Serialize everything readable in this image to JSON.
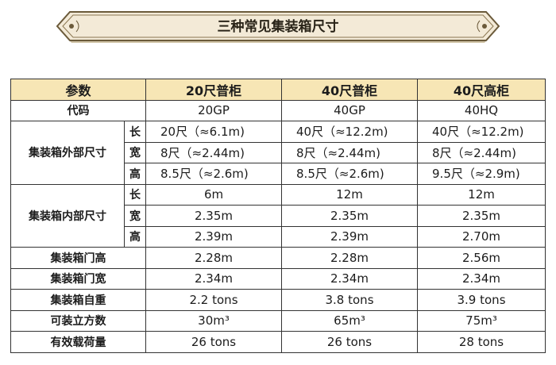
{
  "title": "三种常见集装箱尺寸",
  "table": {
    "header": {
      "param": "参数",
      "c1": "20尺普柜",
      "c2": "40尺普柜",
      "c3": "40尺高柜"
    },
    "code": {
      "label": "代码",
      "c1": "20GP",
      "c2": "40GP",
      "c3": "40HQ"
    },
    "outer": {
      "label": "集装箱外部尺寸",
      "rows": [
        {
          "sub": "长",
          "c1": "20尺（≈6.1m)",
          "c2": "40尺（≈12.2m)",
          "c3": "40尺（≈12.2m)"
        },
        {
          "sub": "宽",
          "c1": "8尺（≈2.44m)",
          "c2": "8尺（≈2.44m)",
          "c3": "8尺（≈2.44m)"
        },
        {
          "sub": "高",
          "c1": "8.5尺（≈2.6m)",
          "c2": "8.5尺（≈2.6m)",
          "c3": "9.5尺（≈2.9m)"
        }
      ]
    },
    "inner": {
      "label": "集装箱内部尺寸",
      "rows": [
        {
          "sub": "长",
          "c1": "6m",
          "c2": "12m",
          "c3": "12m"
        },
        {
          "sub": "宽",
          "c1": "2.35m",
          "c2": "2.35m",
          "c3": "2.35m"
        },
        {
          "sub": "高",
          "c1": "2.39m",
          "c2": "2.39m",
          "c3": "2.70m"
        }
      ]
    },
    "door_height": {
      "label": "集装箱门高",
      "c1": "2.28m",
      "c2": "2.28m",
      "c3": "2.56m"
    },
    "door_width": {
      "label": "集装箱门宽",
      "c1": "2.34m",
      "c2": "2.34m",
      "c3": "2.34m"
    },
    "tare": {
      "label": "集装箱自重",
      "c1": "2.2 tons",
      "c2": "3.8 tons",
      "c3": "3.9 tons"
    },
    "volume": {
      "label": "可装立方数",
      "c1": "30m³",
      "c2": "65m³",
      "c3": "75m³"
    },
    "payload": {
      "label": "有效载荷量",
      "c1": "26 tons",
      "c2": "26 tons",
      "c3": "28 tons"
    }
  },
  "colors": {
    "header_bg": "#f7e6b5",
    "banner_fill": "#f3ead7",
    "banner_border": "#6b5a3a"
  }
}
